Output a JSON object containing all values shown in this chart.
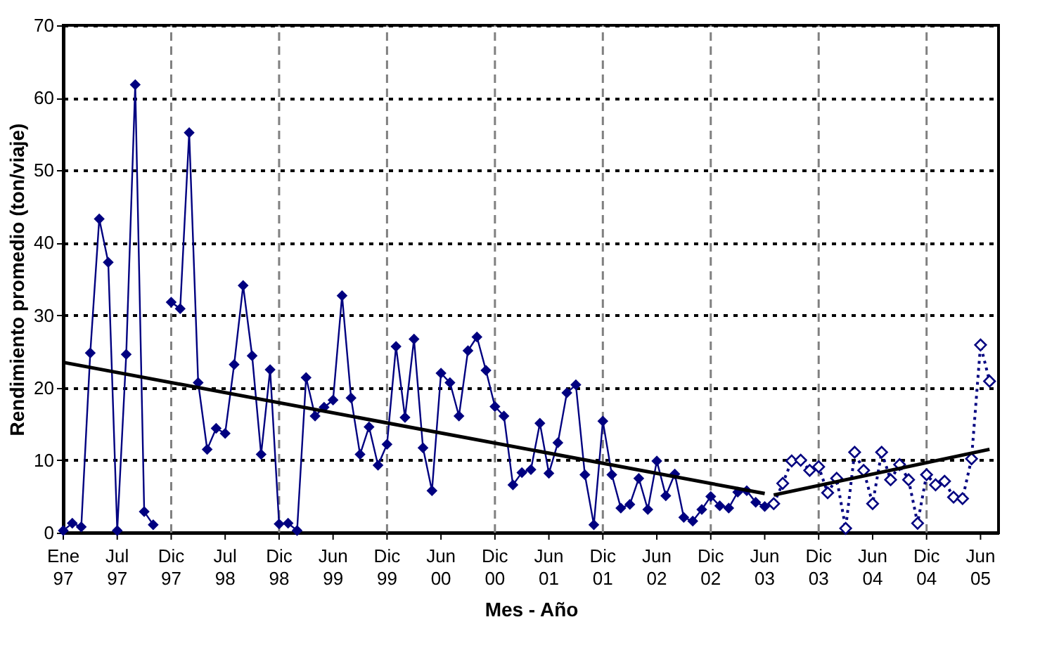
{
  "chart_data": {
    "type": "line",
    "xlabel": "Mes - Año",
    "ylabel": "Rendimiento promedio (ton/viaje)",
    "ylim": [
      0,
      70
    ],
    "yticks": [
      0,
      10,
      20,
      30,
      40,
      50,
      60,
      70
    ],
    "categories": [
      "Ene 97",
      null,
      null,
      null,
      null,
      null,
      "Jul 97",
      null,
      null,
      null,
      null,
      null,
      "Dic 97",
      null,
      null,
      null,
      null,
      null,
      "Jul 98",
      null,
      null,
      null,
      null,
      null,
      "Dic 98",
      null,
      null,
      null,
      null,
      null,
      "Jun 99",
      null,
      null,
      null,
      null,
      null,
      "Dic 99",
      null,
      null,
      null,
      null,
      null,
      "Jun 00",
      null,
      null,
      null,
      null,
      null,
      "Dic 00",
      null,
      null,
      null,
      null,
      null,
      "Jun 01",
      null,
      null,
      null,
      null,
      null,
      "Dic 01",
      null,
      null,
      null,
      null,
      null,
      "Jun 02",
      null,
      null,
      null,
      null,
      null,
      "Dic 02",
      null,
      null,
      null,
      null,
      null,
      "Jun 03",
      null,
      null,
      null,
      null,
      null,
      "Dic 03",
      null,
      null,
      null,
      null,
      null,
      "Jun 04",
      null,
      null,
      null,
      null,
      null,
      "Dic 04",
      null,
      null,
      null,
      null,
      null,
      "Jun 05",
      null
    ],
    "grid": true,
    "series": [
      {
        "color": "#000080",
        "marker": "diamond",
        "line_style": "solid",
        "values": [
          0.3,
          1.3,
          0.8,
          24.8,
          43.3,
          37.3,
          0.3,
          24.6,
          61.8,
          2.9,
          1.1,
          null,
          31.8,
          30.9,
          55.2,
          20.7,
          11.5,
          14.4,
          13.7,
          23.2,
          34.1,
          24.4,
          10.8,
          22.5,
          1.2,
          1.3,
          0.3,
          21.4,
          16.1,
          17.3,
          18.3,
          32.7,
          18.6,
          10.8,
          14.6,
          9.3,
          12.2,
          25.7,
          15.9,
          26.7,
          11.7,
          5.8,
          22.0,
          20.7,
          16.1,
          25.1,
          27.0,
          22.4,
          17.4,
          16.1,
          6.6,
          8.3,
          8.7,
          15.1,
          8.2,
          12.4,
          19.3,
          20.4,
          8.0,
          1.1,
          15.4,
          8.0,
          3.4,
          3.9,
          7.5,
          3.2,
          9.9,
          5.1,
          8.1,
          2.1,
          1.6,
          3.2,
          5.0,
          3.7,
          3.4,
          5.6,
          5.8,
          4.2,
          3.6,
          null,
          null,
          null,
          null,
          null,
          null,
          null,
          null,
          null,
          null,
          null,
          null,
          null,
          null,
          null,
          null,
          null,
          null,
          null,
          null,
          null,
          null,
          null,
          null,
          null
        ]
      },
      {
        "color": "#000080",
        "marker": "diamond",
        "line_style": "dotted",
        "values": [
          null,
          null,
          null,
          null,
          null,
          null,
          null,
          null,
          null,
          null,
          null,
          null,
          null,
          null,
          null,
          null,
          null,
          null,
          null,
          null,
          null,
          null,
          null,
          null,
          null,
          null,
          null,
          null,
          null,
          null,
          null,
          null,
          null,
          null,
          null,
          null,
          null,
          null,
          null,
          null,
          null,
          null,
          null,
          null,
          null,
          null,
          null,
          null,
          null,
          null,
          null,
          null,
          null,
          null,
          null,
          null,
          null,
          null,
          null,
          null,
          null,
          null,
          null,
          null,
          null,
          null,
          null,
          null,
          null,
          null,
          null,
          null,
          null,
          null,
          null,
          null,
          null,
          null,
          null,
          4.0,
          6.8,
          9.9,
          10.0,
          8.6,
          9.1,
          5.5,
          7.5,
          0.6,
          11.1,
          8.6,
          4.0,
          11.1,
          7.3,
          9.4,
          7.3,
          1.3,
          8.0,
          6.6,
          7.1,
          4.9,
          4.7,
          10.2,
          25.9,
          20.9
        ]
      },
      {
        "color": "#000000",
        "marker": "none",
        "line_style": "solid",
        "values": [
          23.5,
          null,
          null,
          null,
          null,
          null,
          null,
          null,
          null,
          null,
          null,
          null,
          null,
          null,
          null,
          null,
          null,
          null,
          null,
          null,
          null,
          null,
          null,
          null,
          null,
          null,
          null,
          null,
          null,
          null,
          null,
          null,
          null,
          null,
          null,
          null,
          null,
          null,
          null,
          null,
          null,
          null,
          null,
          null,
          null,
          null,
          null,
          null,
          null,
          null,
          null,
          null,
          null,
          null,
          null,
          null,
          null,
          null,
          null,
          null,
          null,
          null,
          null,
          null,
          null,
          null,
          null,
          null,
          null,
          null,
          null,
          null,
          null,
          null,
          null,
          null,
          null,
          null,
          5.4,
          null,
          null,
          null,
          null,
          null,
          null,
          null,
          null,
          null,
          null,
          null,
          null,
          null,
          null,
          null,
          null,
          null,
          null,
          null,
          null,
          null,
          null,
          null,
          null,
          null
        ]
      },
      {
        "color": "#000000",
        "marker": "none",
        "line_style": "solid",
        "values": [
          null,
          null,
          null,
          null,
          null,
          null,
          null,
          null,
          null,
          null,
          null,
          null,
          null,
          null,
          null,
          null,
          null,
          null,
          null,
          null,
          null,
          null,
          null,
          null,
          null,
          null,
          null,
          null,
          null,
          null,
          null,
          null,
          null,
          null,
          null,
          null,
          null,
          null,
          null,
          null,
          null,
          null,
          null,
          null,
          null,
          null,
          null,
          null,
          null,
          null,
          null,
          null,
          null,
          null,
          null,
          null,
          null,
          null,
          null,
          null,
          null,
          null,
          null,
          null,
          null,
          null,
          null,
          null,
          null,
          null,
          null,
          null,
          null,
          null,
          null,
          null,
          null,
          null,
          null,
          5.2,
          null,
          null,
          null,
          null,
          null,
          null,
          null,
          null,
          null,
          null,
          null,
          null,
          null,
          null,
          null,
          null,
          null,
          null,
          null,
          null,
          null,
          null,
          null,
          11.5
        ]
      }
    ]
  }
}
